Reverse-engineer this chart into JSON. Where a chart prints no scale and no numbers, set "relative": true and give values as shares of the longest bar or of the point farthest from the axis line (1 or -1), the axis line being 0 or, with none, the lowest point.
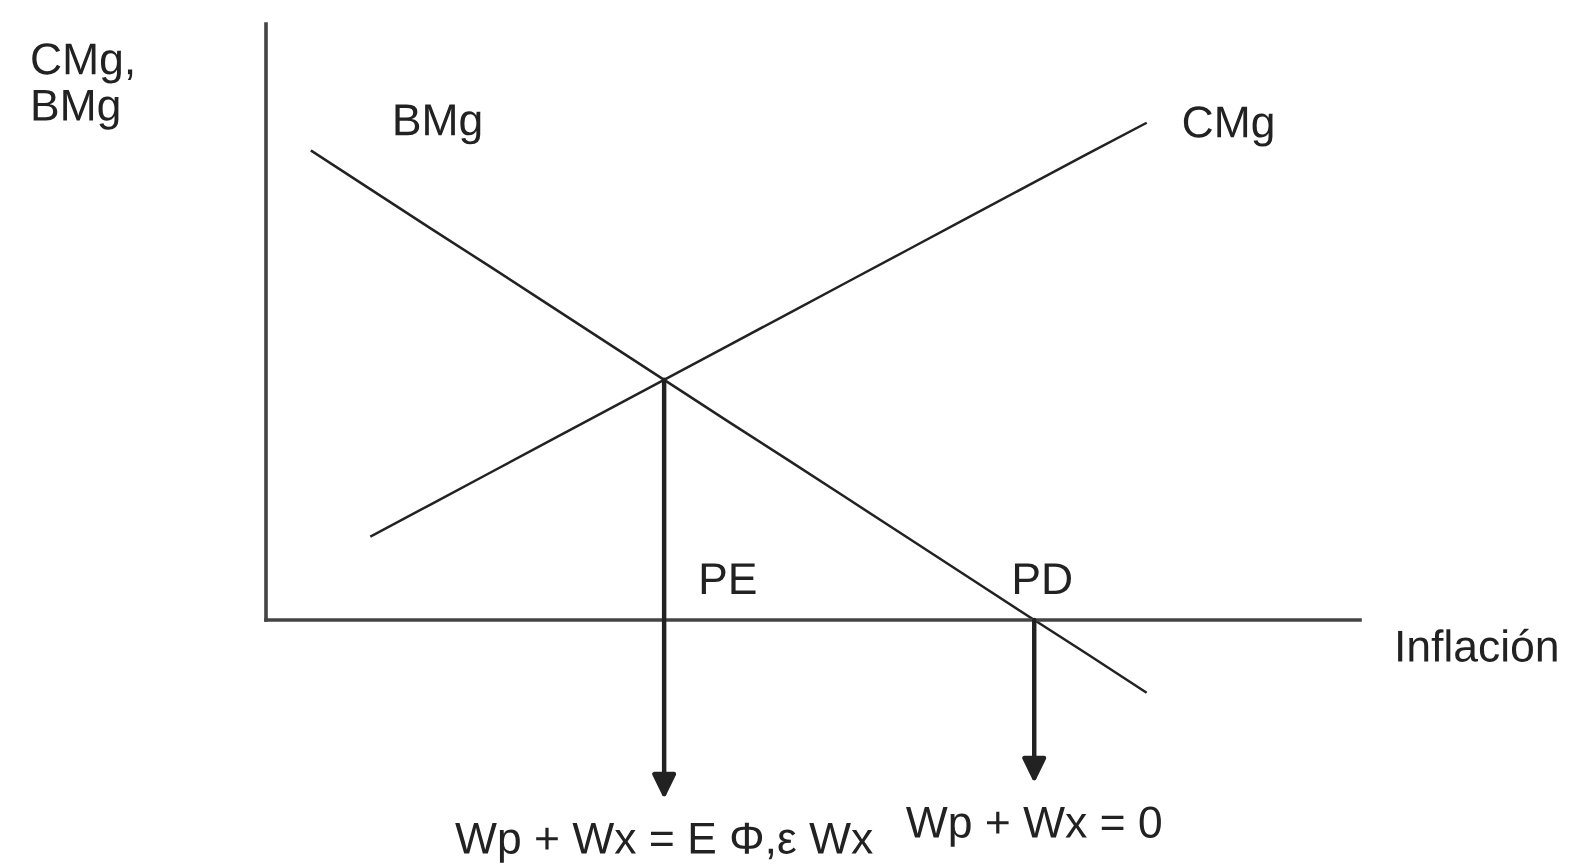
{
  "chart_data": {
    "type": "line",
    "relative": true,
    "ylabel": "CMg,\nBMg",
    "line_style": "solid",
    "categories": [
      null,
      null,
      null,
      null,
      null,
      null,
      null,
      null,
      null,
      null,
      null,
      null,
      null,
      null,
      null
    ],
    "series": [
      {
        "name": "BMg",
        "color": "#222222",
        "values": [
          0.944,
          0.866,
          0.788,
          0.711,
          0.633,
          0.555,
          0.477,
          0.399,
          0.322,
          0.244,
          0.166,
          0.088,
          0.01,
          -0.067,
          -0.145
        ]
      },
      {
        "name": "CMg",
        "color": "#222222",
        "values": [
          null,
          0.169,
          0.233,
          0.297,
          0.361,
          0.425,
          0.489,
          0.553,
          0.617,
          0.681,
          0.745,
          0.809,
          0.873,
          0.937,
          1
        ]
      }
    ],
    "annotations": [
      "PE",
      "PD",
      "Inflación",
      "Wp + Wx = E Φ,ε Wx",
      "Wp + Wx = 0"
    ]
  }
}
